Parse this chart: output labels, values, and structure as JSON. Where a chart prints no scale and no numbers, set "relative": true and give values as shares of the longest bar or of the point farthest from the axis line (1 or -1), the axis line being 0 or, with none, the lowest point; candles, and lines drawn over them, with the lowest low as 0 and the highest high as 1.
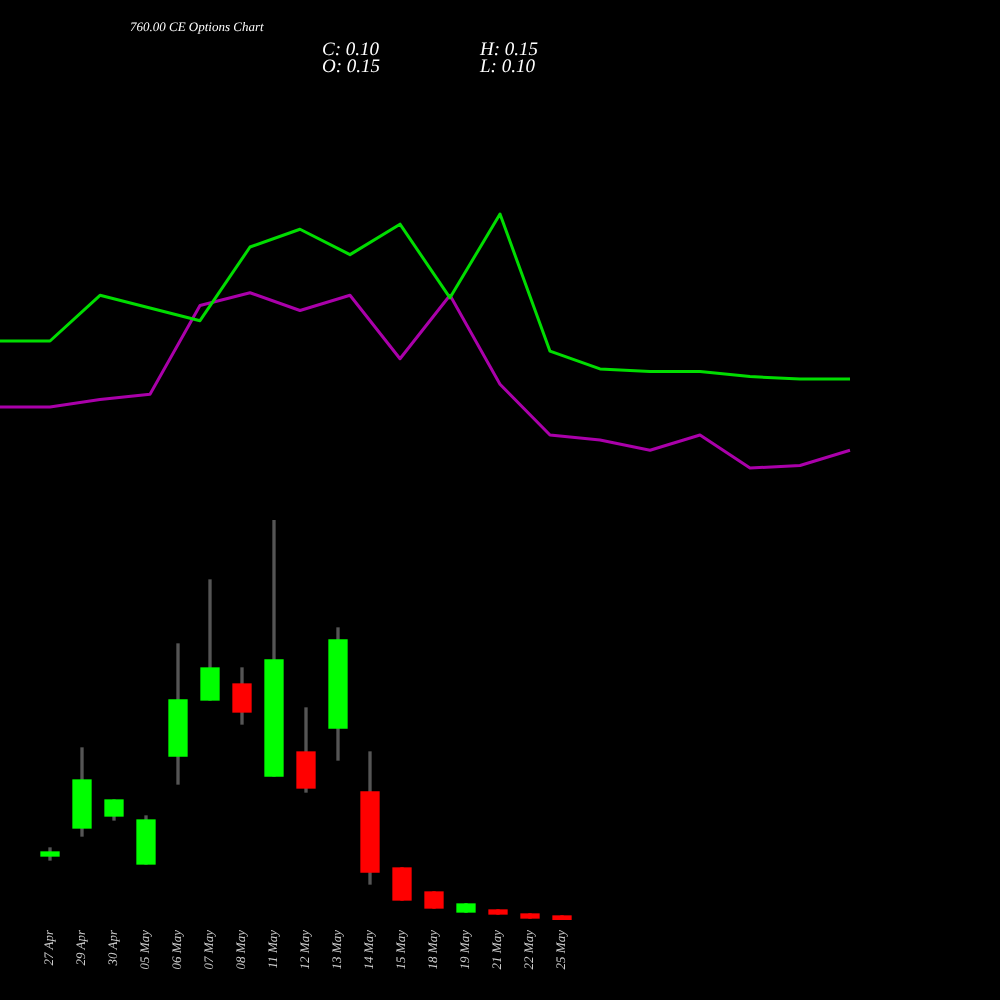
{
  "chart_data": [
    {
      "type": "line",
      "title": "760.00 CE Options Chart",
      "relative": true,
      "tick_labels": false,
      "categories": [
        null,
        null,
        null,
        null,
        null,
        null,
        null,
        null,
        null,
        null,
        null,
        null,
        null,
        null,
        null,
        null,
        null,
        null
      ],
      "series": [
        {
          "color": "#00dd00",
          "values": [
            0.5,
            0.5,
            0.68,
            0.63,
            0.58,
            0.87,
            0.94,
            0.84,
            0.96,
            0.67,
            1.0,
            0.46,
            0.39,
            0.38,
            0.38,
            0.36,
            0.35,
            0.35
          ]
        },
        {
          "color": "#aa00aa",
          "values": [
            0.24,
            0.24,
            0.27,
            0.29,
            0.64,
            0.69,
            0.62,
            0.68,
            0.43,
            0.68,
            0.33,
            0.13,
            0.11,
            0.07,
            0.13,
            0,
            0.01,
            0.07
          ]
        }
      ]
    },
    {
      "type": "candlestick",
      "relative": true,
      "annotations": [
        "C: 0.10",
        "O: 0.15",
        "H: 0.15",
        "L: 0.10"
      ],
      "categories": [
        "27 Apr",
        "29 Apr",
        "30 Apr",
        "05 May",
        "06 May",
        "07 May",
        "08 May",
        "11 May",
        "12 May",
        "13 May",
        "14 May",
        "15 May",
        "18 May",
        "19 May",
        "21 May",
        "22 May",
        "25 May"
      ],
      "ohlc": [
        [
          0.16,
          0.18,
          0.15,
          0.17
        ],
        [
          0.23,
          0.43,
          0.21,
          0.35
        ],
        [
          0.26,
          0.3,
          0.25,
          0.3
        ],
        [
          0.14,
          0.26,
          0.14,
          0.25
        ],
        [
          0.41,
          0.69,
          0.34,
          0.55
        ],
        [
          0.55,
          0.85,
          0.55,
          0.63
        ],
        [
          0.59,
          0.63,
          0.49,
          0.52
        ],
        [
          0.36,
          1,
          0.36,
          0.65
        ],
        [
          0.42,
          0.53,
          0.32,
          0.33
        ],
        [
          0.48,
          0.73,
          0.4,
          0.7
        ],
        [
          0.32,
          0.42,
          0.09,
          0.12
        ],
        [
          0.13,
          0.13,
          0.05,
          0.05
        ],
        [
          0.07,
          0.07,
          0.03,
          0.03
        ],
        [
          0.02,
          0.04,
          0.02,
          0.04
        ],
        [
          0.025,
          0.025,
          0.015,
          0.015
        ],
        [
          0.015,
          0.015,
          0.005,
          0.005
        ],
        [
          0.01,
          0.01,
          0,
          0
        ]
      ],
      "colors": [
        "#00ff00",
        "#00ff00",
        "#00ff00",
        "#00ff00",
        "#00ff00",
        "#00ff00",
        "#ff0000",
        "#00ff00",
        "#ff0000",
        "#00ff00",
        "#ff0000",
        "#ff0000",
        "#ff0000",
        "#00ff00",
        "#ff0000",
        "#ff0000",
        "#ff0000"
      ]
    }
  ]
}
